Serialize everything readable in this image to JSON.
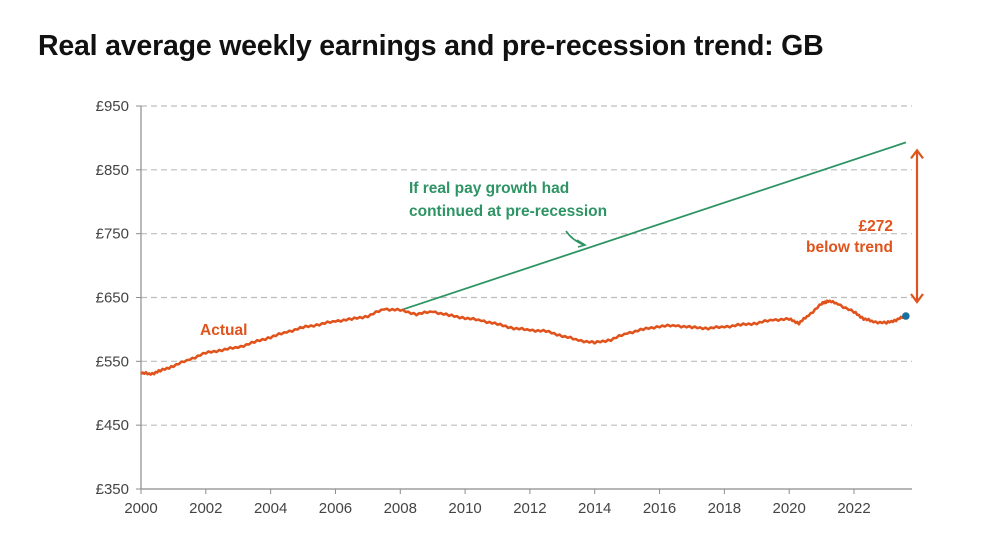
{
  "chart_data": {
    "type": "line",
    "title": "Real average weekly earnings and pre-recession trend: GB",
    "xlabel": "",
    "ylabel": "",
    "xlim": [
      2000,
      2023.75
    ],
    "ylim": [
      350,
      950
    ],
    "grid": true,
    "x_ticks": [
      2000,
      2002,
      2004,
      2006,
      2008,
      2010,
      2012,
      2014,
      2016,
      2018,
      2020,
      2022
    ],
    "x_tick_labels": [
      "2000",
      "2002",
      "2004",
      "2006",
      "2008",
      "2010",
      "2012",
      "2014",
      "2016",
      "2018",
      "2020",
      "2022"
    ],
    "y_ticks": [
      350,
      450,
      550,
      650,
      750,
      850,
      950
    ],
    "y_tick_labels": [
      "£350",
      "£450",
      "£550",
      "£650",
      "£750",
      "£850",
      "£950"
    ],
    "series": [
      {
        "name": "Actual",
        "color": "#e0531c",
        "x": [
          2000.0,
          2000.3,
          2000.6,
          2001.0,
          2001.5,
          2002.0,
          2002.5,
          2003.0,
          2003.5,
          2004.0,
          2004.5,
          2005.0,
          2005.5,
          2006.0,
          2006.5,
          2007.0,
          2007.5,
          2008.0,
          2008.5,
          2009.0,
          2009.5,
          2010.0,
          2010.5,
          2011.0,
          2011.5,
          2012.0,
          2012.5,
          2013.0,
          2013.5,
          2014.0,
          2014.5,
          2015.0,
          2015.5,
          2016.0,
          2016.5,
          2017.0,
          2017.5,
          2018.0,
          2018.5,
          2019.0,
          2019.5,
          2020.0,
          2020.3,
          2020.6,
          2021.0,
          2021.2,
          2021.5,
          2022.0,
          2022.3,
          2022.6,
          2023.0,
          2023.3,
          2023.6
        ],
        "values": [
          532,
          530,
          535,
          543,
          553,
          563,
          568,
          572,
          580,
          588,
          596,
          603,
          608,
          613,
          616,
          621,
          632,
          630,
          624,
          628,
          622,
          618,
          614,
          608,
          602,
          599,
          597,
          590,
          583,
          579,
          584,
          594,
          600,
          605,
          606,
          603,
          602,
          604,
          607,
          610,
          615,
          616,
          610,
          622,
          640,
          645,
          640,
          627,
          617,
          612,
          610,
          615,
          621
        ]
      },
      {
        "name": "If real pay growth had continued at pre-recession",
        "color": "#2e9464",
        "x": [
          2008.0,
          2023.6
        ],
        "values": [
          630,
          893
        ]
      }
    ],
    "annotations": [
      {
        "text": "Actual",
        "color": "#e0531c",
        "near": "actual-series-start"
      },
      {
        "text_lines": [
          "If real pay growth had",
          "continued at pre-recession"
        ],
        "color": "#2e9464",
        "near": "trend-line",
        "arrow": true
      },
      {
        "text_lines": [
          "£272",
          "below trend"
        ],
        "color": "#e0531c",
        "near": "gap-arrow-right"
      }
    ],
    "gap": {
      "value": 272,
      "from": 621,
      "to": 893,
      "at_x": 2023.6
    },
    "last_point": {
      "x": 2023.6,
      "value": 621,
      "color": "#1b6f9e"
    },
    "legend": "none"
  }
}
